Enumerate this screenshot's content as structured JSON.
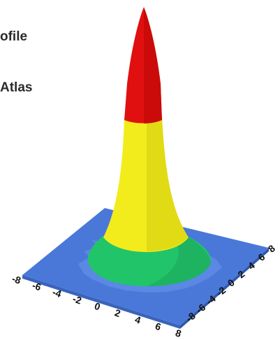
{
  "text_fragments": [
    "ofile",
    "Atlas"
  ],
  "chart_data": {
    "type": "surface",
    "x_ticks": [
      "-8",
      "-6",
      "-4",
      "-2",
      "0",
      "2",
      "4",
      "6",
      "8"
    ],
    "y_ticks": [
      "-8",
      "-6",
      "-4",
      "-2",
      "0",
      "2",
      "4",
      "6",
      "8"
    ],
    "xlim": [
      -8,
      8
    ],
    "ylim": [
      -8,
      8
    ],
    "color_bands": [
      {
        "name": "blue",
        "color": "#4a78d8"
      },
      {
        "name": "green",
        "color": "#22c46a"
      },
      {
        "name": "yellow",
        "color": "#f2ec1c"
      },
      {
        "name": "red",
        "color": "#e01010"
      }
    ]
  }
}
